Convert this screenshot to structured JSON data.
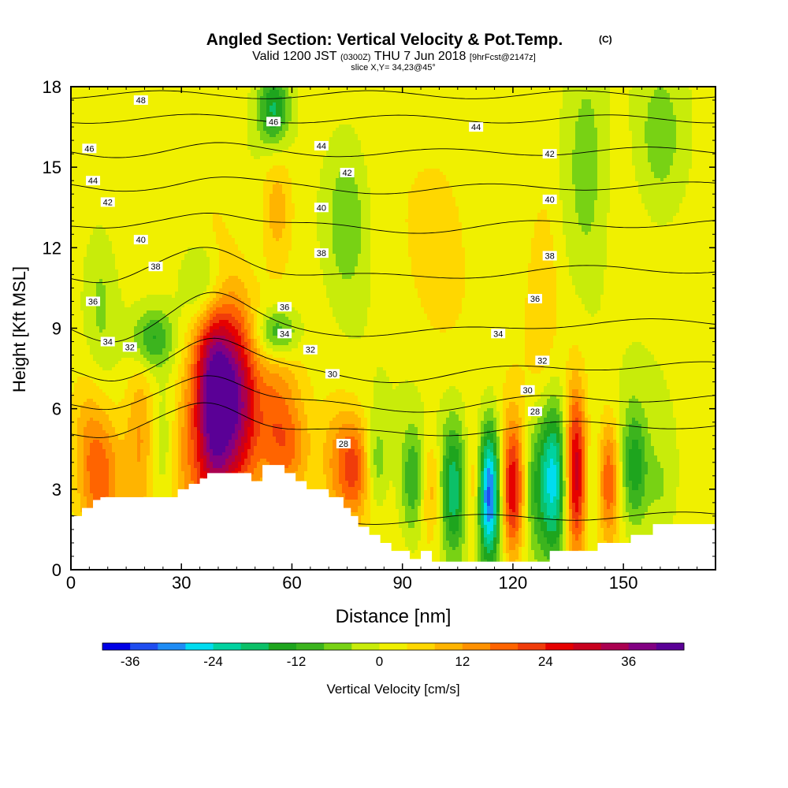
{
  "chart_data": {
    "type": "heatmap",
    "title": "Angled Section: Vertical Velocity & Pot.Temp.",
    "title_units": "(C)",
    "subtitle_parts": [
      "Valid 1200 JST",
      "(0300Z)",
      "THU 7 Jun 2018",
      "[9hrFcst@2147z]"
    ],
    "slice_label": "slice X,Y= 34,23@45°",
    "xlabel": "Distance [nm]",
    "ylabel": "Height [Kft MSL]",
    "xlim": [
      0,
      175
    ],
    "ylim": [
      0,
      18
    ],
    "x_ticks": [
      0,
      30,
      60,
      90,
      120,
      150
    ],
    "y_ticks": [
      0,
      3,
      6,
      9,
      12,
      15,
      18
    ],
    "colorbar": {
      "label": "Vertical Velocity [cm/s]",
      "ticks": [
        -36,
        -24,
        -12,
        0,
        12,
        24,
        36
      ],
      "min": -40,
      "max": 44,
      "step": 4,
      "colors": [
        "#0000e6",
        "#1f4df0",
        "#1e8cf5",
        "#00dcf0",
        "#00d2a0",
        "#0cc068",
        "#1ea51e",
        "#3cb41e",
        "#78d214",
        "#c8ec0a",
        "#f0f000",
        "#ffd700",
        "#ffb400",
        "#ff9100",
        "#ff6400",
        "#f03c0a",
        "#e60000",
        "#c8001e",
        "#aa0050",
        "#820082",
        "#5a0096"
      ]
    },
    "terrain": [
      [
        0,
        2
      ],
      [
        3,
        2
      ],
      [
        3,
        2.3
      ],
      [
        6,
        2.3
      ],
      [
        6,
        2.6
      ],
      [
        8,
        2.6
      ],
      [
        8,
        2.7
      ],
      [
        29,
        2.7
      ],
      [
        29,
        3.0
      ],
      [
        32,
        3.0
      ],
      [
        32,
        3.2
      ],
      [
        35,
        3.2
      ],
      [
        35,
        3.4
      ],
      [
        37,
        3.4
      ],
      [
        37,
        3.6
      ],
      [
        49,
        3.6
      ],
      [
        49,
        3.3
      ],
      [
        52,
        3.3
      ],
      [
        52,
        3.9
      ],
      [
        58,
        3.9
      ],
      [
        58,
        3.6
      ],
      [
        61,
        3.6
      ],
      [
        61,
        3.3
      ],
      [
        64,
        3.3
      ],
      [
        64,
        3.0
      ],
      [
        70,
        3.0
      ],
      [
        70,
        2.7
      ],
      [
        74,
        2.7
      ],
      [
        74,
        2.3
      ],
      [
        76,
        2.3
      ],
      [
        76,
        2.0
      ],
      [
        78,
        2.0
      ],
      [
        78,
        1.6
      ],
      [
        81,
        1.6
      ],
      [
        81,
        1.3
      ],
      [
        84,
        1.3
      ],
      [
        84,
        1.0
      ],
      [
        87,
        1.0
      ],
      [
        87,
        0.7
      ],
      [
        92,
        0.7
      ],
      [
        92,
        0.4
      ],
      [
        95,
        0.4
      ],
      [
        95,
        0.7
      ],
      [
        98,
        0.7
      ],
      [
        98,
        0.3
      ],
      [
        130,
        0.3
      ],
      [
        130,
        0.7
      ],
      [
        143,
        0.7
      ],
      [
        143,
        1.0
      ],
      [
        152,
        1.0
      ],
      [
        152,
        1.3
      ],
      [
        158,
        1.3
      ],
      [
        158,
        1.7
      ],
      [
        175,
        1.7
      ]
    ],
    "velocity_cells": [
      {
        "x": 4,
        "z": 5.5,
        "sx": 3,
        "sz": 1.6,
        "w": 5
      },
      {
        "x": 8,
        "z": 3.5,
        "sx": 4,
        "sz": 1.8,
        "w": 17
      },
      {
        "x": 19,
        "z": 5,
        "sx": 3,
        "sz": 2.2,
        "w": 12
      },
      {
        "x": 25,
        "z": 4.5,
        "sx": 3,
        "sz": 1.6,
        "w": -6
      },
      {
        "x": 30,
        "z": 4.2,
        "sx": 3,
        "sz": 2,
        "w": 8
      },
      {
        "x": 39,
        "z": 6.3,
        "sx": 4.2,
        "sz": 3.2,
        "w": 44
      },
      {
        "x": 46,
        "z": 6.2,
        "sx": 3.4,
        "sz": 2.4,
        "w": 22
      },
      {
        "x": 55,
        "z": 5.5,
        "sx": 5,
        "sz": 2.2,
        "w": 14
      },
      {
        "x": 60,
        "z": 4.5,
        "sx": 4,
        "sz": 1.2,
        "w": 8
      },
      {
        "x": 72,
        "z": 4,
        "sx": 3,
        "sz": 1.6,
        "w": 10
      },
      {
        "x": 77,
        "z": 3.8,
        "sx": 2.8,
        "sz": 1.4,
        "w": 18
      },
      {
        "x": 83,
        "z": 4,
        "sx": 2,
        "sz": 1.2,
        "w": -8
      },
      {
        "x": 93,
        "z": 3.3,
        "sx": 2.5,
        "sz": 1.5,
        "w": -14
      },
      {
        "x": 98,
        "z": 3,
        "sx": 2.4,
        "sz": 1.4,
        "w": 12
      },
      {
        "x": 104,
        "z": 3,
        "sx": 3.2,
        "sz": 1.8,
        "w": -22
      },
      {
        "x": 109,
        "z": 3,
        "sx": 2.2,
        "sz": 1.6,
        "w": 14
      },
      {
        "x": 113.5,
        "z": 2.8,
        "sx": 2.2,
        "sz": 1.8,
        "w": -36
      },
      {
        "x": 120,
        "z": 3,
        "sx": 2.3,
        "sz": 1.8,
        "w": 28
      },
      {
        "x": 125,
        "z": 3.2,
        "sx": 2.4,
        "sz": 1.8,
        "w": -8
      },
      {
        "x": 131,
        "z": 3.4,
        "sx": 3,
        "sz": 2,
        "w": -28
      },
      {
        "x": 137,
        "z": 3.6,
        "sx": 2.2,
        "sz": 2.2,
        "w": 32
      },
      {
        "x": 141,
        "z": 3.3,
        "sx": 1.8,
        "sz": 1.6,
        "w": -6
      },
      {
        "x": 146,
        "z": 3.3,
        "sx": 2,
        "sz": 1.6,
        "w": 18
      },
      {
        "x": 153,
        "z": 3.8,
        "sx": 2.5,
        "sz": 1.6,
        "w": -16
      },
      {
        "x": 160,
        "z": 3,
        "sx": 3,
        "sz": 1.6,
        "w": -6
      },
      {
        "x": 22,
        "z": 8.6,
        "sx": 4,
        "sz": 0.8,
        "w": -14
      },
      {
        "x": 37,
        "z": 10.5,
        "sx": 4,
        "sz": 1.2,
        "w": -18
      },
      {
        "x": 56,
        "z": 8.8,
        "sx": 4,
        "sz": 0.7,
        "w": -16
      },
      {
        "x": 56,
        "z": 13.5,
        "sx": 3,
        "sz": 1.5,
        "w": 10
      },
      {
        "x": 75,
        "z": 13,
        "sx": 4,
        "sz": 2,
        "w": -10
      },
      {
        "x": 55,
        "z": 17.2,
        "sx": 3,
        "sz": 1,
        "w": -18
      },
      {
        "x": 8,
        "z": 10,
        "sx": 3,
        "sz": 2,
        "w": -6
      },
      {
        "x": 100,
        "z": 11.5,
        "sx": 6,
        "sz": 2.5,
        "w": 5
      },
      {
        "x": 128,
        "z": 10.5,
        "sx": 3,
        "sz": 3,
        "w": 6
      },
      {
        "x": 140,
        "z": 15,
        "sx": 4,
        "sz": 3,
        "w": -8
      },
      {
        "x": 160,
        "z": 16,
        "sx": 5,
        "sz": 2,
        "w": -9
      }
    ],
    "isentropes": [
      {
        "base": 2,
        "label": "28"
      },
      {
        "base": 5.4,
        "label": "30"
      },
      {
        "base": 6.4,
        "label": "32"
      },
      {
        "base": 7.6,
        "label": "34"
      },
      {
        "base": 9.2,
        "label": "36"
      },
      {
        "base": 11.2,
        "label": "38"
      },
      {
        "base": 12.9,
        "label": "40"
      },
      {
        "base": 14.3,
        "label": "42"
      },
      {
        "base": 15.6,
        "label": "44"
      },
      {
        "base": 16.8,
        "label": "46"
      },
      {
        "base": 17.7,
        "label": "48"
      }
    ],
    "isentrope_labels": [
      {
        "x": 10,
        "z": 8.5,
        "text": "34"
      },
      {
        "x": 16,
        "z": 8.3,
        "text": "32"
      },
      {
        "x": 6,
        "z": 10,
        "text": "36"
      },
      {
        "x": 23,
        "z": 11.3,
        "text": "38"
      },
      {
        "x": 19,
        "z": 12.3,
        "text": "40"
      },
      {
        "x": 10,
        "z": 13.7,
        "text": "42"
      },
      {
        "x": 6,
        "z": 14.5,
        "text": "44"
      },
      {
        "x": 5,
        "z": 15.7,
        "text": "46"
      },
      {
        "x": 19,
        "z": 17.5,
        "text": "48"
      },
      {
        "x": 55,
        "z": 16.7,
        "text": "46"
      },
      {
        "x": 68,
        "z": 15.8,
        "text": "44"
      },
      {
        "x": 75,
        "z": 14.8,
        "text": "42"
      },
      {
        "x": 68,
        "z": 13.5,
        "text": "40"
      },
      {
        "x": 68,
        "z": 11.8,
        "text": "38"
      },
      {
        "x": 58,
        "z": 9.8,
        "text": "36"
      },
      {
        "x": 58,
        "z": 8.8,
        "text": "34"
      },
      {
        "x": 65,
        "z": 8.2,
        "text": "32"
      },
      {
        "x": 71,
        "z": 7.3,
        "text": "30"
      },
      {
        "x": 74,
        "z": 4.7,
        "text": "28"
      },
      {
        "x": 110,
        "z": 16.5,
        "text": "44"
      },
      {
        "x": 130,
        "z": 15.5,
        "text": "42"
      },
      {
        "x": 130,
        "z": 13.8,
        "text": "40"
      },
      {
        "x": 130,
        "z": 11.7,
        "text": "38"
      },
      {
        "x": 126,
        "z": 10.1,
        "text": "36"
      },
      {
        "x": 116,
        "z": 8.8,
        "text": "34"
      },
      {
        "x": 128,
        "z": 7.8,
        "text": "32"
      },
      {
        "x": 124,
        "z": 6.7,
        "text": "30"
      },
      {
        "x": 126,
        "z": 5.9,
        "text": "28"
      }
    ]
  }
}
